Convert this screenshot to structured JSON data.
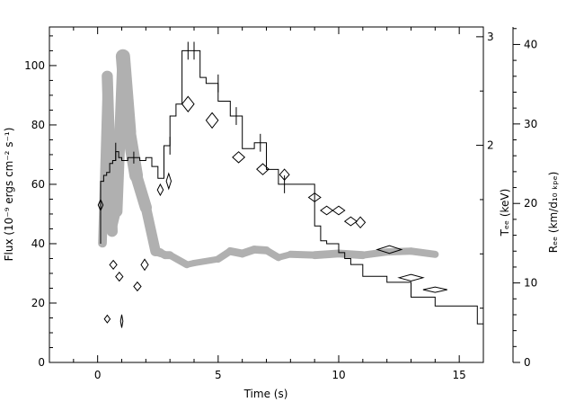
{
  "chart_data": {
    "type": "line",
    "xlabel": "Time (s)",
    "ylabel_left": "Flux (10⁻⁹ ergs cm⁻² s⁻¹)",
    "ylabel_mid": "Tₑₑ (keV)",
    "ylabel_right": "Rₑₑ (km/d₁₀ ₖₚₑ)",
    "xlim": [
      -2,
      16
    ],
    "ylim_left": [
      0,
      113
    ],
    "ylim_mid": [
      0,
      3.09
    ],
    "ylim_right": [
      0,
      42.2
    ],
    "xticks": [
      0,
      5,
      10,
      15
    ],
    "xtick_labels": [
      "0",
      "5",
      "10",
      "15"
    ],
    "yticks_left": [
      0,
      20,
      40,
      60,
      80,
      100
    ],
    "ytick_labels_left": [
      "0",
      "20",
      "40",
      "60",
      "80",
      "100"
    ],
    "yticks_mid": [
      2,
      3
    ],
    "ytick_labels_mid": [
      "2",
      "3"
    ],
    "yticks_right": [
      0,
      10,
      20,
      30,
      40
    ],
    "ytick_labels_right": [
      "0",
      "10",
      "20",
      "30",
      "40"
    ],
    "series": [
      {
        "kind": "flux-histogram",
        "axis": "left",
        "color": "#000000",
        "bins": [
          [
            0.125,
            0.25,
            61
          ],
          [
            0.25,
            0.375,
            63
          ],
          [
            0.375,
            0.5,
            64
          ],
          [
            0.5,
            0.625,
            67
          ],
          [
            0.625,
            0.75,
            68
          ],
          [
            0.75,
            0.875,
            71
          ],
          [
            0.875,
            1.0,
            69
          ],
          [
            1.0,
            1.25,
            68
          ],
          [
            1.25,
            1.5,
            69
          ],
          [
            1.5,
            1.75,
            69
          ],
          [
            1.75,
            2.0,
            68
          ],
          [
            2.0,
            2.25,
            69
          ],
          [
            2.25,
            2.5,
            66
          ],
          [
            2.5,
            2.75,
            62
          ],
          [
            2.75,
            3.0,
            73
          ],
          [
            3.0,
            3.25,
            83
          ],
          [
            3.25,
            3.5,
            87
          ],
          [
            3.5,
            4.25,
            105
          ],
          [
            4.25,
            4.5,
            96
          ],
          [
            4.5,
            5.0,
            94
          ],
          [
            5.0,
            5.5,
            88
          ],
          [
            5.5,
            6.0,
            83
          ],
          [
            6.0,
            6.5,
            72
          ],
          [
            6.5,
            7.0,
            74
          ],
          [
            7.0,
            7.5,
            65
          ],
          [
            7.5,
            8.0,
            60
          ],
          [
            8.0,
            9.0,
            60
          ],
          [
            9.0,
            9.25,
            46
          ],
          [
            9.25,
            9.5,
            41
          ],
          [
            9.5,
            10.0,
            40
          ],
          [
            10.0,
            10.25,
            37
          ],
          [
            10.25,
            10.5,
            35
          ],
          [
            10.5,
            11.0,
            33
          ],
          [
            11.0,
            12.0,
            29
          ],
          [
            12.0,
            13.0,
            27
          ],
          [
            13.0,
            14.0,
            22
          ],
          [
            14.0,
            15.0,
            19
          ],
          [
            15.0,
            15.75,
            19
          ],
          [
            15.75,
            16.0,
            13
          ]
        ],
        "errorbars": [
          [
            0.75,
            71,
            3
          ],
          [
            1.5,
            69,
            2
          ],
          [
            3.0,
            73,
            3
          ],
          [
            3.75,
            105,
            3
          ],
          [
            4.0,
            105,
            3
          ],
          [
            5.0,
            94,
            3
          ],
          [
            5.75,
            83,
            3
          ],
          [
            6.75,
            74,
            3
          ],
          [
            7.75,
            60,
            3
          ]
        ]
      },
      {
        "kind": "temperature-diamonds",
        "axis": "mid",
        "color": "#000000",
        "points": [
          [
            0.125,
            1.45,
            0.1,
            0.05
          ],
          [
            0.4,
            0.4,
            0.12,
            0.035
          ],
          [
            0.65,
            0.9,
            0.15,
            0.04
          ],
          [
            0.9,
            0.79,
            0.15,
            0.04
          ],
          [
            1.0,
            0.38,
            0.05,
            0.06
          ],
          [
            1.65,
            0.7,
            0.15,
            0.04
          ],
          [
            1.95,
            0.9,
            0.15,
            0.05
          ],
          [
            2.6,
            1.59,
            0.12,
            0.05
          ],
          [
            2.95,
            1.67,
            0.1,
            0.07
          ],
          [
            3.75,
            2.38,
            0.25,
            0.07
          ],
          [
            4.75,
            2.23,
            0.25,
            0.07
          ],
          [
            5.85,
            1.89,
            0.25,
            0.05
          ],
          [
            6.85,
            1.78,
            0.25,
            0.05
          ],
          [
            7.75,
            1.73,
            0.2,
            0.05
          ],
          [
            9.0,
            1.52,
            0.25,
            0.04
          ],
          [
            9.5,
            1.4,
            0.25,
            0.04
          ],
          [
            10.0,
            1.4,
            0.25,
            0.04
          ],
          [
            10.5,
            1.3,
            0.25,
            0.04
          ],
          [
            10.9,
            1.29,
            0.2,
            0.05
          ],
          [
            12.1,
            1.04,
            0.5,
            0.035
          ],
          [
            13.0,
            0.78,
            0.5,
            0.03
          ],
          [
            14.0,
            0.67,
            0.5,
            0.025
          ]
        ]
      },
      {
        "kind": "radius-band",
        "axis": "right",
        "color": "#b0b0b0",
        "x": [
          0.2,
          0.4,
          0.6,
          0.8,
          1.05,
          1.3,
          1.6,
          2.0,
          2.4,
          2.6,
          2.8,
          3.0,
          3.7,
          4.0,
          5.0,
          5.5,
          6.0,
          6.5,
          7.0,
          7.5,
          8.0,
          9.0,
          10.0,
          11.0,
          12.0,
          13.0,
          14.0
        ],
        "y": [
          15,
          36,
          16.5,
          19,
          38.5,
          29,
          23.5,
          19.5,
          14,
          13.8,
          13.5,
          13.5,
          12.3,
          12.5,
          13,
          14,
          13.7,
          14.2,
          14.1,
          13.2,
          13.6,
          13.5,
          13.7,
          13.5,
          13.9,
          14,
          13.6
        ],
        "halfwidth": [
          0.2,
          0.9,
          0.5,
          0.5,
          0.9,
          0.9,
          0.8,
          0.7,
          0.6,
          0.5,
          0.5,
          0.5,
          0.4,
          0.4,
          0.4,
          0.5,
          0.5,
          0.5,
          0.5,
          0.4,
          0.4,
          0.5,
          0.5,
          0.5,
          0.4,
          0.5,
          0.4
        ]
      }
    ]
  }
}
